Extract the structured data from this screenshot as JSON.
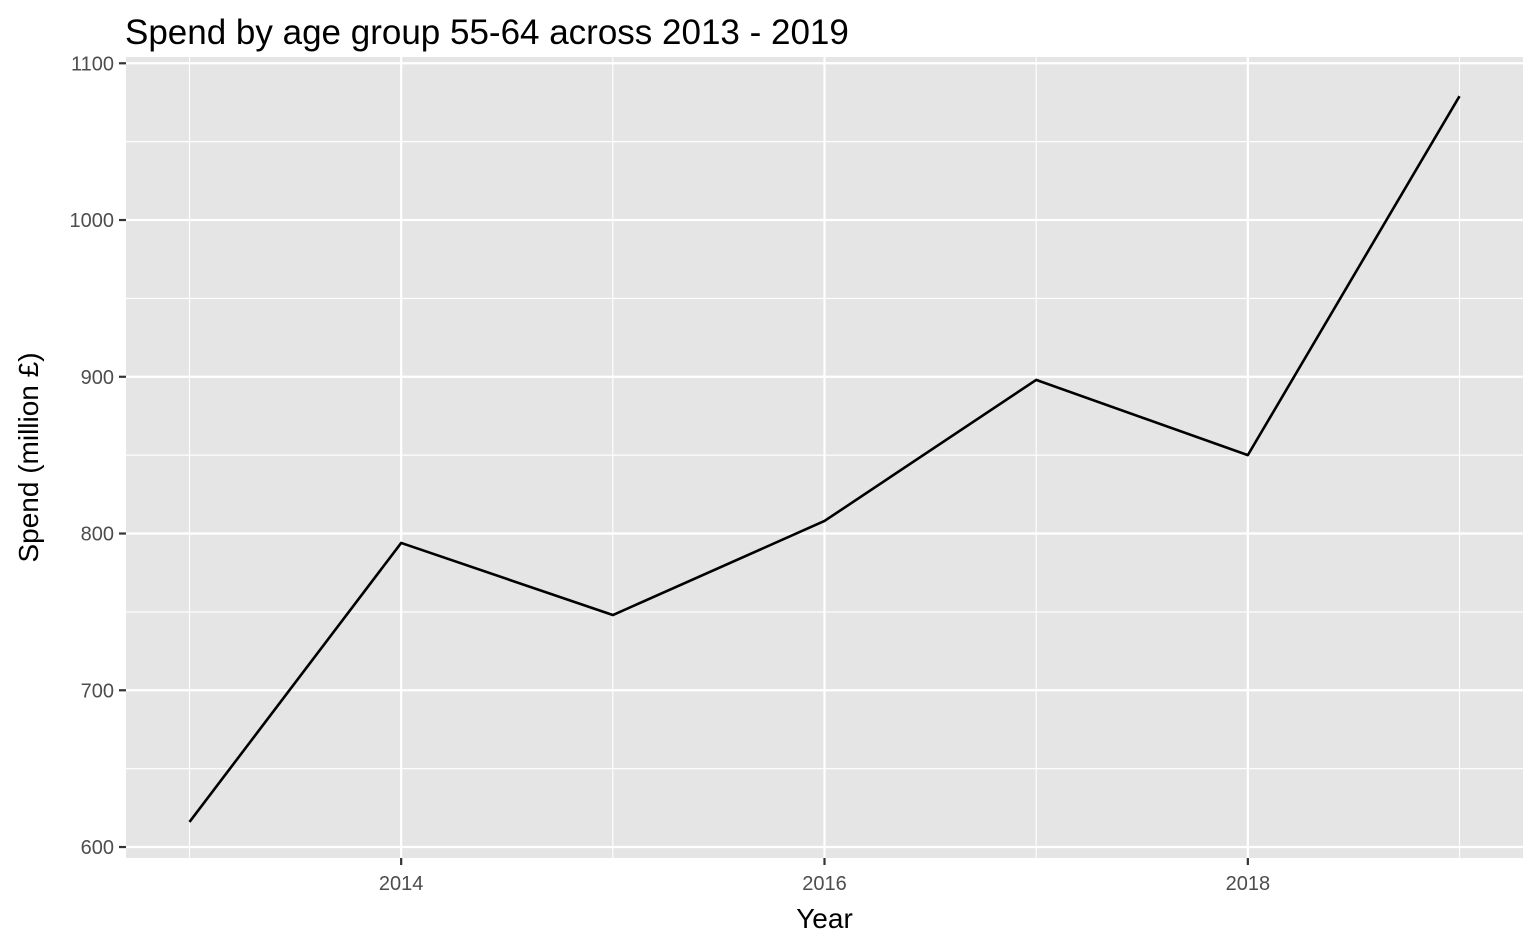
{
  "chart_data": {
    "type": "line",
    "title": "Spend by age group 55-64 across 2013 - 2019",
    "xlabel": "Year",
    "ylabel": "Spend (million £)",
    "x": [
      2013,
      2014,
      2015,
      2016,
      2017,
      2018,
      2019
    ],
    "series": [
      {
        "values": [
          616,
          794,
          748,
          808,
          898,
          850,
          1079
        ]
      }
    ],
    "xlim": [
      2012.7,
      2019.3
    ],
    "ylim": [
      593,
      1104
    ],
    "x_ticks": [
      2014,
      2016,
      2018
    ],
    "x_minor_ticks": [
      2013,
      2015,
      2017,
      2019
    ],
    "y_ticks": [
      600,
      700,
      800,
      900,
      1000,
      1100
    ],
    "y_minor_ticks": [
      650,
      750,
      850,
      950,
      1050
    ],
    "grid": true,
    "legend": "none",
    "colors": {
      "panel": "#e5e5e5",
      "grid": "#ffffff",
      "line": "#000000",
      "tick_text": "#4d4d4d"
    }
  }
}
